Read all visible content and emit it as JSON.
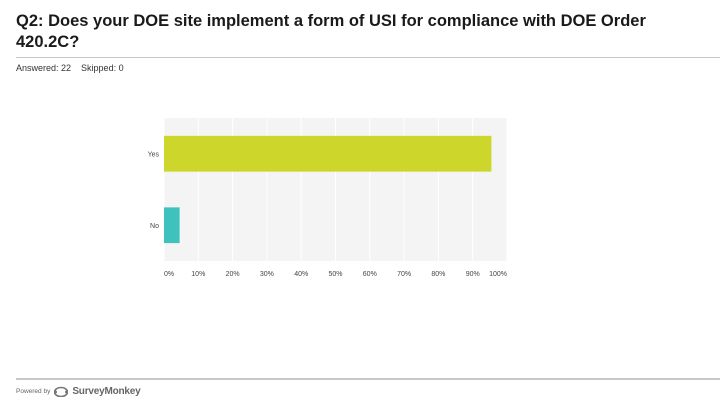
{
  "header": {
    "title": "Q2: Does your DOE site implement a form of USI for compliance with DOE Order 420.2C?",
    "answered": "Answered: 22",
    "skipped": "Skipped: 0"
  },
  "chart_data": {
    "type": "bar",
    "orientation": "horizontal",
    "categories": [
      "Yes",
      "No"
    ],
    "values": [
      95.45,
      4.55
    ],
    "colors": [
      "#cdd72b",
      "#3fc1bd"
    ],
    "xlim": [
      0,
      100
    ],
    "x_ticks": [
      "0%",
      "10%",
      "20%",
      "30%",
      "40%",
      "50%",
      "60%",
      "70%",
      "80%",
      "90%",
      "100%"
    ],
    "grid": true
  },
  "footer": {
    "powered_by": "Powered by",
    "brand": "SurveyMonkey",
    "brand_icon": "surveymonkey-logo-icon"
  }
}
